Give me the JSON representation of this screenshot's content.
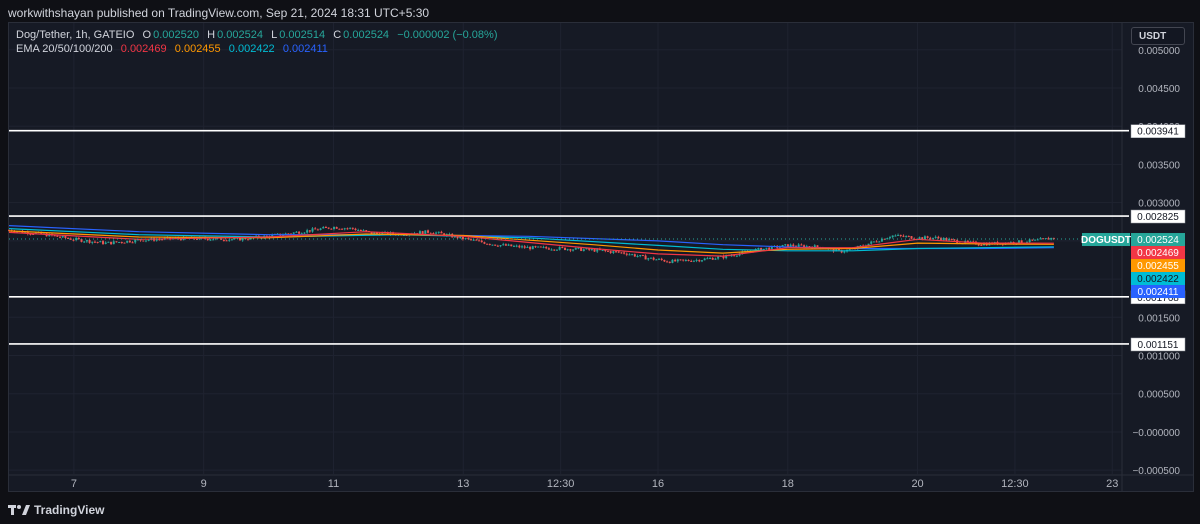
{
  "publisher": "workwithshayan published on TradingView.com, Sep 21, 2024 18:31 UTC+5:30",
  "legend": {
    "symbol": "Dog/Tether, 1h, GATEIO",
    "o_label": "O",
    "o": "0.002520",
    "h_label": "H",
    "h": "0.002524",
    "l_label": "L",
    "l": "0.002514",
    "c_label": "C",
    "c": "0.002524",
    "change": "−0.000002 (−0.08%)",
    "ema_label": "EMA 20/50/100/200",
    "ema20": "0.002469",
    "ema50": "0.002455",
    "ema100": "0.002422",
    "ema200": "0.002411"
  },
  "currency_button": "USDT",
  "footer": {
    "brand": "TradingView"
  },
  "colors": {
    "up": "#26a69a",
    "down": "#ef5350",
    "ema20": "#f23645",
    "ema50": "#ff9800",
    "ema100": "#00bcd4",
    "ema200": "#2962ff",
    "level": "#ffffff"
  },
  "chart_data": {
    "type": "candlestick",
    "symbol": "DOGUSDT",
    "timeframe": "1h",
    "ylim": [
      -0.00055,
      0.00535
    ],
    "y_ticks": [
      "0.005000",
      "0.004500",
      "0.004000",
      "0.003500",
      "0.003000",
      "0.002500",
      "0.002000",
      "0.001500",
      "0.001000",
      "0.000500",
      "−0.000000",
      "−0.000500"
    ],
    "y_tick_values": [
      0.005,
      0.0045,
      0.004,
      0.0035,
      0.003,
      0.0025,
      0.002,
      0.0015,
      0.001,
      0.0005,
      0.0,
      -0.0005
    ],
    "x_range": [
      6.0,
      23.15
    ],
    "x_ticks": [
      {
        "label": "7",
        "x": 7.0
      },
      {
        "label": "9",
        "x": 9.0
      },
      {
        "label": "11",
        "x": 11.0
      },
      {
        "label": "13",
        "x": 13.0
      },
      {
        "label": "12:30",
        "x": 14.5
      },
      {
        "label": "16",
        "x": 16.0
      },
      {
        "label": "18",
        "x": 18.0
      },
      {
        "label": "20",
        "x": 20.0
      },
      {
        "label": "12:30",
        "x": 21.5
      },
      {
        "label": "23",
        "x": 23.0
      }
    ],
    "horizontal_levels": [
      {
        "value": 0.003941,
        "label": "0.003941"
      },
      {
        "value": 0.002825,
        "label": "0.002825"
      },
      {
        "value": 0.001768,
        "label": "0.001768"
      },
      {
        "value": 0.001151,
        "label": "0.001151"
      }
    ],
    "last_price": {
      "value": 0.002524,
      "label": "0.002524",
      "name": "DOGUSDT"
    },
    "ema_tags": [
      {
        "value": 0.002469,
        "label": "0.002469",
        "key": "ema20"
      },
      {
        "value": 0.002455,
        "label": "0.002455",
        "key": "ema50"
      },
      {
        "value": 0.002422,
        "label": "0.002422",
        "key": "ema100"
      },
      {
        "value": 0.002411,
        "label": "0.002411",
        "key": "ema200"
      }
    ],
    "price_path": [
      [
        6.0,
        0.00264
      ],
      [
        6.5,
        0.00259
      ],
      [
        7.0,
        0.00252
      ],
      [
        7.5,
        0.00247
      ],
      [
        8.0,
        0.00251
      ],
      [
        8.5,
        0.00253
      ],
      [
        9.0,
        0.00253
      ],
      [
        9.5,
        0.00252
      ],
      [
        10.0,
        0.00256
      ],
      [
        10.5,
        0.00262
      ],
      [
        11.0,
        0.00268
      ],
      [
        11.3,
        0.00266
      ],
      [
        11.6,
        0.0026
      ],
      [
        12.0,
        0.00259
      ],
      [
        12.5,
        0.00262
      ],
      [
        13.0,
        0.00253
      ],
      [
        13.5,
        0.00245
      ],
      [
        14.0,
        0.00241
      ],
      [
        14.5,
        0.0024
      ],
      [
        15.0,
        0.00238
      ],
      [
        15.5,
        0.00234
      ],
      [
        15.8,
        0.00228
      ],
      [
        16.2,
        0.00223
      ],
      [
        16.6,
        0.00225
      ],
      [
        17.0,
        0.00229
      ],
      [
        17.5,
        0.00238
      ],
      [
        18.0,
        0.00244
      ],
      [
        18.5,
        0.00242
      ],
      [
        18.8,
        0.00236
      ],
      [
        19.0,
        0.00239
      ],
      [
        19.3,
        0.00248
      ],
      [
        19.6,
        0.00257
      ],
      [
        20.0,
        0.00254
      ],
      [
        20.3,
        0.00254
      ],
      [
        20.7,
        0.00248
      ],
      [
        21.0,
        0.00246
      ],
      [
        21.3,
        0.00247
      ],
      [
        21.8,
        0.0025
      ],
      [
        22.1,
        0.00254
      ]
    ],
    "ema_paths": {
      "ema20": [
        [
          6.0,
          0.00261
        ],
        [
          8.0,
          0.00252
        ],
        [
          10.0,
          0.00255
        ],
        [
          11.5,
          0.00262
        ],
        [
          13.0,
          0.00256
        ],
        [
          15.0,
          0.0024
        ],
        [
          16.0,
          0.00233
        ],
        [
          17.0,
          0.0023
        ],
        [
          18.0,
          0.00241
        ],
        [
          19.0,
          0.00241
        ],
        [
          20.0,
          0.00252
        ],
        [
          21.0,
          0.00247
        ],
        [
          22.1,
          0.002469
        ]
      ],
      "ema50": [
        [
          6.0,
          0.00263
        ],
        [
          8.0,
          0.00255
        ],
        [
          10.0,
          0.00254
        ],
        [
          11.5,
          0.00259
        ],
        [
          13.0,
          0.00257
        ],
        [
          15.0,
          0.00245
        ],
        [
          16.0,
          0.00238
        ],
        [
          17.0,
          0.00234
        ],
        [
          18.0,
          0.00239
        ],
        [
          19.0,
          0.0024
        ],
        [
          20.0,
          0.00247
        ],
        [
          21.0,
          0.00246
        ],
        [
          22.1,
          0.002455
        ]
      ],
      "ema100": [
        [
          6.0,
          0.00266
        ],
        [
          8.0,
          0.00258
        ],
        [
          10.0,
          0.00255
        ],
        [
          12.0,
          0.00258
        ],
        [
          14.0,
          0.00254
        ],
        [
          16.0,
          0.00244
        ],
        [
          17.0,
          0.00239
        ],
        [
          18.0,
          0.00237
        ],
        [
          19.0,
          0.00237
        ],
        [
          20.0,
          0.0024
        ],
        [
          21.0,
          0.00241
        ],
        [
          22.1,
          0.002422
        ]
      ],
      "ema200": [
        [
          6.0,
          0.0027
        ],
        [
          8.0,
          0.00262
        ],
        [
          10.0,
          0.00258
        ],
        [
          12.0,
          0.00258
        ],
        [
          14.0,
          0.00256
        ],
        [
          16.0,
          0.0025
        ],
        [
          17.0,
          0.00245
        ],
        [
          18.0,
          0.00242
        ],
        [
          19.0,
          0.0024
        ],
        [
          20.0,
          0.0024
        ],
        [
          21.0,
          0.0024
        ],
        [
          22.1,
          0.002411
        ]
      ]
    },
    "grid": true,
    "legend_position": "top-left"
  }
}
